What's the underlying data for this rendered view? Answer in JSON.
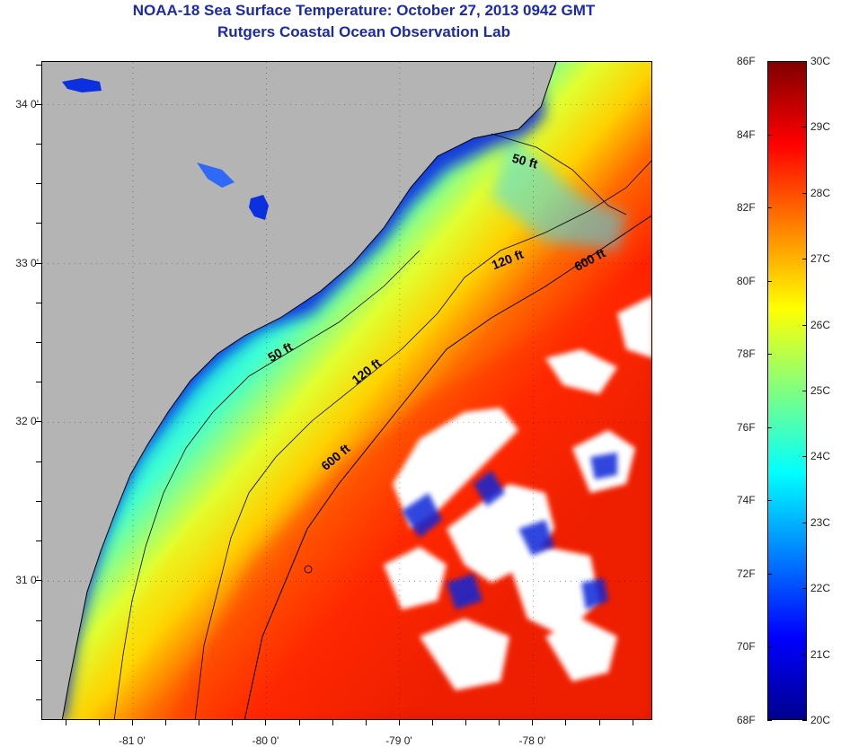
{
  "header": {
    "title": "NOAA-18 Sea Surface Temperature:  October 27, 2013 0942 GMT",
    "subtitle": "Rutgers Coastal Ocean Observation Lab"
  },
  "map": {
    "lon_range": [
      -81.68,
      -77.1
    ],
    "lat_range": [
      30.12,
      34.27
    ],
    "lat_ticks": [
      {
        "value": 34.0,
        "label": "34 0'"
      },
      {
        "value": 33.0,
        "label": "33 0'"
      },
      {
        "value": 32.0,
        "label": "32 0'"
      },
      {
        "value": 31.0,
        "label": "31 0'"
      }
    ],
    "lon_ticks": [
      {
        "value": -81.0,
        "label": "-81 0'"
      },
      {
        "value": -80.0,
        "label": "-80 0'"
      },
      {
        "value": -79.0,
        "label": "-79 0'"
      },
      {
        "value": -78.0,
        "label": "-78 0'"
      }
    ],
    "colors": {
      "land": "#b4b4b4",
      "cloud": "#ffffff",
      "contour": "#000000"
    },
    "contour_labels": [
      {
        "text": "50 ft",
        "lon": -78.07,
        "lat": 33.62,
        "angle": 15
      },
      {
        "text": "120 ft",
        "lon": -78.18,
        "lat": 33.0,
        "angle": -22
      },
      {
        "text": "600 ft",
        "lon": -77.56,
        "lat": 33.0,
        "angle": -28
      },
      {
        "text": "50 ft",
        "lon": -79.88,
        "lat": 32.42,
        "angle": -30
      },
      {
        "text": "120 ft",
        "lon": -79.23,
        "lat": 32.3,
        "angle": -38
      },
      {
        "text": "600 ft",
        "lon": -79.46,
        "lat": 31.76,
        "angle": -40
      }
    ]
  },
  "colorbar": {
    "f_ticks": [
      "86F",
      "84F",
      "82F",
      "80F",
      "78F",
      "76F",
      "74F",
      "72F",
      "70F",
      "68F"
    ],
    "c_ticks": [
      "30C",
      "29C",
      "28C",
      "27C",
      "26C",
      "25C",
      "24C",
      "23C",
      "22C",
      "21C",
      "20C"
    ],
    "range_f": [
      68,
      86
    ],
    "stops": [
      "#00008f",
      "#0000ff",
      "#0080ff",
      "#00ffff",
      "#80ff80",
      "#ffff00",
      "#ff8000",
      "#ff0000",
      "#800000"
    ]
  }
}
